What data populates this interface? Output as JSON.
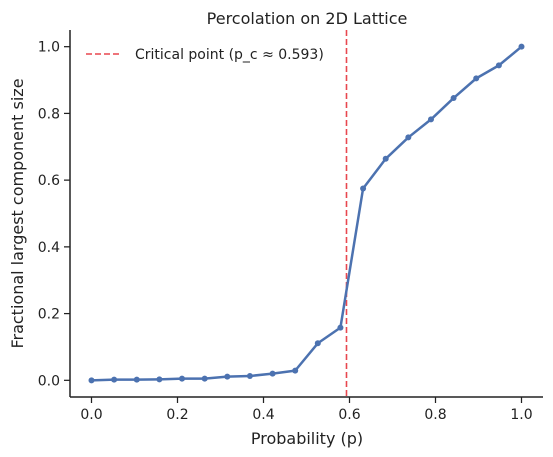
{
  "chart_data": {
    "type": "line",
    "title": "Percolation on 2D Lattice",
    "xlabel": "Probability (p)",
    "ylabel": "Fractional largest component size",
    "xlim": [
      -0.05,
      1.05
    ],
    "ylim": [
      -0.05,
      1.05
    ],
    "xticks": [
      0.0,
      0.2,
      0.4,
      0.6,
      0.8,
      1.0
    ],
    "xtick_labels": [
      "0.0",
      "0.2",
      "0.4",
      "0.6",
      "0.8",
      "1.0"
    ],
    "yticks": [
      0.0,
      0.2,
      0.4,
      0.6,
      0.8,
      1.0
    ],
    "ytick_labels": [
      "0.0",
      "0.2",
      "0.4",
      "0.6",
      "0.8",
      "1.0"
    ],
    "grid": false,
    "legend_position": "top-left",
    "series": [
      {
        "x": [
          0.0,
          0.0526,
          0.1053,
          0.1579,
          0.2105,
          0.2632,
          0.3158,
          0.3684,
          0.4211,
          0.4737,
          0.5263,
          0.5789,
          0.6316,
          0.6842,
          0.7368,
          0.7895,
          0.8421,
          0.8947,
          0.9474,
          1.0
        ],
        "y": [
          0.0,
          0.002,
          0.002,
          0.003,
          0.005,
          0.005,
          0.011,
          0.013,
          0.02,
          0.029,
          0.111,
          0.158,
          0.575,
          0.664,
          0.728,
          0.782,
          0.846,
          0.905,
          0.944,
          1.0
        ],
        "color": "#4c72b0",
        "marker": "circle"
      }
    ],
    "reference_line": {
      "orientation": "vertical",
      "x": 0.593,
      "label": "Critical point (p_c ≈ 0.593)",
      "color": "#e8474f",
      "style": "dashed"
    }
  }
}
